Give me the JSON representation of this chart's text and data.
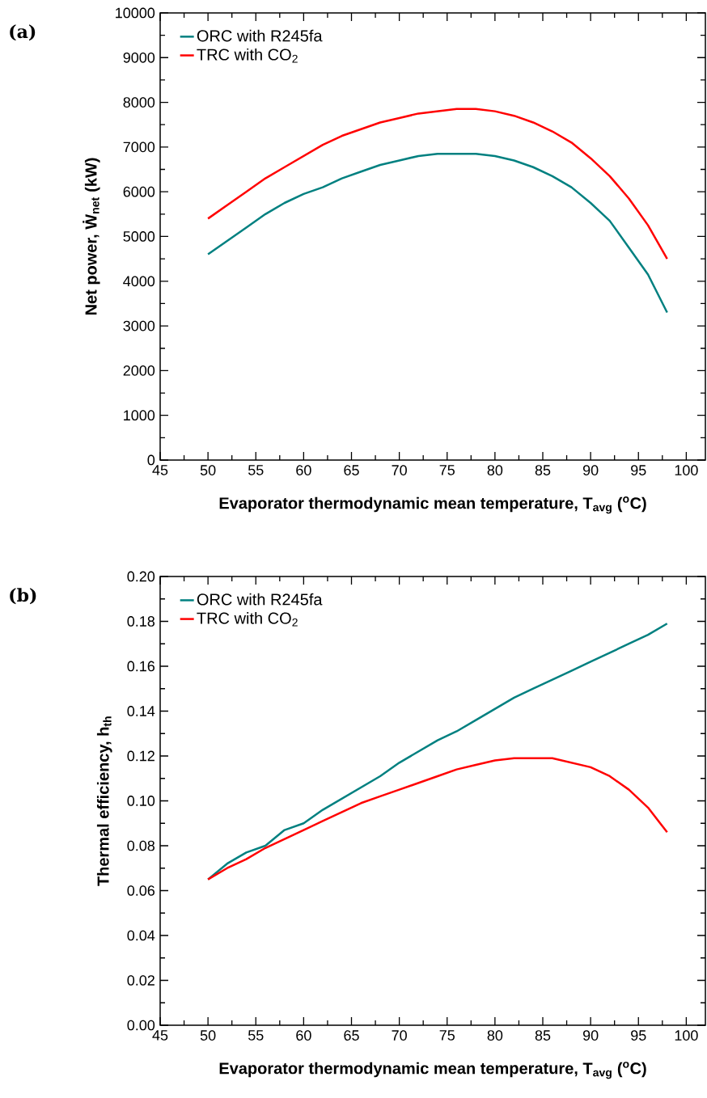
{
  "chart_data": [
    {
      "type": "line",
      "xlabel": "Evaporator thermodynamic mean temperature, T$_{avg}$ ($^{o}$C)",
      "ylabel": "Net power, Ẇ$_{net}$ (kW)",
      "annotations": [
        "(a)"
      ],
      "x": [
        50,
        52,
        54,
        56,
        58,
        60,
        62,
        64,
        66,
        68,
        70,
        72,
        74,
        76,
        78,
        80,
        82,
        84,
        86,
        88,
        90,
        92,
        94,
        96,
        98
      ],
      "series": [
        {
          "name": "ORC with R245fa",
          "color": "#008080",
          "values": [
            4600,
            4900,
            5200,
            5500,
            5750,
            5950,
            6100,
            6300,
            6450,
            6600,
            6700,
            6800,
            6850,
            6850,
            6850,
            6800,
            6700,
            6550,
            6350,
            6100,
            5750,
            5350,
            4750,
            4150,
            3300
          ]
        },
        {
          "name": "TRC with CO$_{2}$",
          "color": "#ff0000",
          "values": [
            5400,
            5700,
            6000,
            6300,
            6550,
            6800,
            7050,
            7250,
            7400,
            7550,
            7650,
            7750,
            7800,
            7850,
            7850,
            7800,
            7700,
            7550,
            7350,
            7100,
            6750,
            6350,
            5850,
            5250,
            4500
          ]
        }
      ],
      "xlim": [
        45,
        102
      ],
      "xticks": [
        45,
        50,
        55,
        60,
        65,
        70,
        75,
        80,
        85,
        90,
        95,
        100
      ],
      "ylim": [
        0,
        10000
      ],
      "yticks": [
        0,
        1000,
        2000,
        3000,
        4000,
        5000,
        6000,
        7000,
        8000,
        9000,
        10000
      ],
      "legend": "top left"
    },
    {
      "type": "line",
      "xlabel": "Evaporator thermodynamic mean temperature, T$_{avg}$ ($^{o}$C)",
      "ylabel": "Thermal efficiency, h$_{th}$",
      "annotations": [
        "(b)"
      ],
      "x": [
        50,
        52,
        54,
        56,
        58,
        60,
        62,
        64,
        66,
        68,
        70,
        72,
        74,
        76,
        78,
        80,
        82,
        84,
        86,
        88,
        90,
        92,
        94,
        96,
        98
      ],
      "series": [
        {
          "name": "ORC with R245fa",
          "color": "#008080",
          "values": [
            0.065,
            0.072,
            0.077,
            0.08,
            0.087,
            0.09,
            0.096,
            0.101,
            0.106,
            0.111,
            0.117,
            0.122,
            0.127,
            0.131,
            0.136,
            0.141,
            0.146,
            0.15,
            0.154,
            0.158,
            0.162,
            0.166,
            0.17,
            0.174,
            0.179
          ]
        },
        {
          "name": "TRC with CO$_{2}$",
          "color": "#ff0000",
          "values": [
            0.065,
            0.07,
            0.074,
            0.079,
            0.083,
            0.087,
            0.091,
            0.095,
            0.099,
            0.102,
            0.105,
            0.108,
            0.111,
            0.114,
            0.116,
            0.118,
            0.119,
            0.119,
            0.119,
            0.117,
            0.115,
            0.111,
            0.105,
            0.097,
            0.086
          ]
        }
      ],
      "xlim": [
        45,
        102
      ],
      "xticks": [
        45,
        50,
        55,
        60,
        65,
        70,
        75,
        80,
        85,
        90,
        95,
        100
      ],
      "ylim": [
        0,
        0.2
      ],
      "yticks": [
        {
          "value": 0,
          "label": "0.00"
        },
        {
          "value": 0.02,
          "label": "0.02"
        },
        {
          "value": 0.04,
          "label": "0.04"
        },
        {
          "value": 0.06,
          "label": "0.06"
        },
        {
          "value": 0.08,
          "label": "0.08"
        },
        {
          "value": 0.1,
          "label": "0.10"
        },
        {
          "value": 0.12,
          "label": "0.12"
        },
        {
          "value": 0.14,
          "label": "0.14"
        },
        {
          "value": 0.16,
          "label": "0.16"
        },
        {
          "value": 0.18,
          "label": "0.18"
        },
        {
          "value": 0.2,
          "label": "0.20"
        }
      ],
      "legend": "top left"
    }
  ]
}
